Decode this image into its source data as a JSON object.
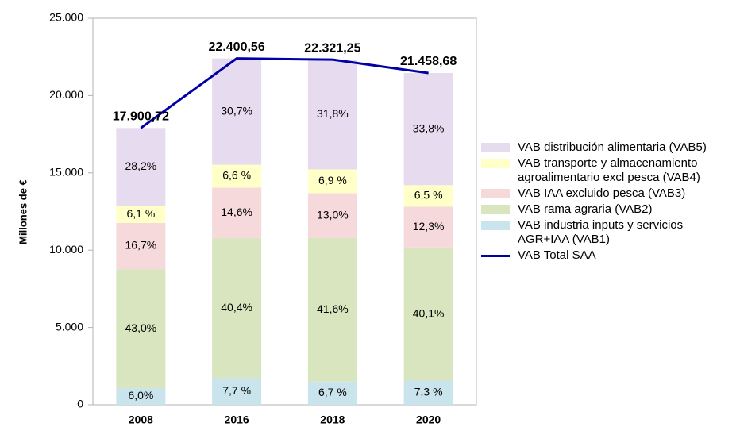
{
  "chart_data": {
    "type": "stacked_bar_line",
    "y_label": "Millones de €",
    "categories": [
      "2008",
      "2016",
      "2018",
      "2020"
    ],
    "ylim": [
      0,
      25000
    ],
    "yticks": [
      0,
      {
        "value": 5000,
        "label": "5.000"
      },
      {
        "value": 10000,
        "label": "10.000"
      },
      {
        "value": 15000,
        "label": "15.000"
      },
      {
        "value": 20000,
        "label": "20.000"
      },
      {
        "value": 25000,
        "label": "25.000"
      }
    ],
    "grid": false,
    "legend": "right",
    "series": [
      {
        "name": "VAB industria inputs y servicios AGR+IAA (VAB1)",
        "kind": "bar",
        "color": "#c9e4ec",
        "values": [
          1074,
          1725,
          1496,
          1566
        ],
        "shares": [
          "6,0%",
          "7,7 %",
          "6,7 %",
          "7,3 %"
        ]
      },
      {
        "name": "VAB rama agraria (VAB2)",
        "kind": "bar",
        "color": "#d8e5be",
        "values": [
          7697,
          9050,
          9286,
          8605
        ],
        "shares": [
          "43,0%",
          "40,4%",
          "41,6%",
          "40,1%"
        ]
      },
      {
        "name": "VAB IAA excluido pesca (VAB3)",
        "kind": "bar",
        "color": "#f6dadb",
        "values": [
          2989,
          3270,
          2902,
          2639
        ],
        "shares": [
          "16,7%",
          "14,6%",
          "13,0%",
          "12,3%"
        ]
      },
      {
        "name": "VAB transporte y almacenamiento agroalimentario excl pesca (VAB4)",
        "kind": "bar",
        "color": "#ffffc8",
        "values": [
          1092,
          1478,
          1540,
          1395
        ],
        "shares": [
          "6,1 %",
          "6,6 %",
          "6,9 %",
          "6,5 %"
        ]
      },
      {
        "name": "VAB distribución alimentaria (VAB5)",
        "kind": "bar",
        "color": "#e7dbef",
        "values": [
          5048,
          6877,
          7098,
          7253
        ],
        "shares": [
          "28,2%",
          "30,7%",
          "31,8%",
          "33,8%"
        ]
      },
      {
        "name": "VAB Total SAA",
        "kind": "line",
        "color": "#0000a6",
        "values": [
          17900.72,
          22400.56,
          22321.25,
          21458.68
        ],
        "value_labels": [
          "17.900,72",
          "22.400,56",
          "22.321,25",
          "21.458,68"
        ]
      }
    ]
  }
}
